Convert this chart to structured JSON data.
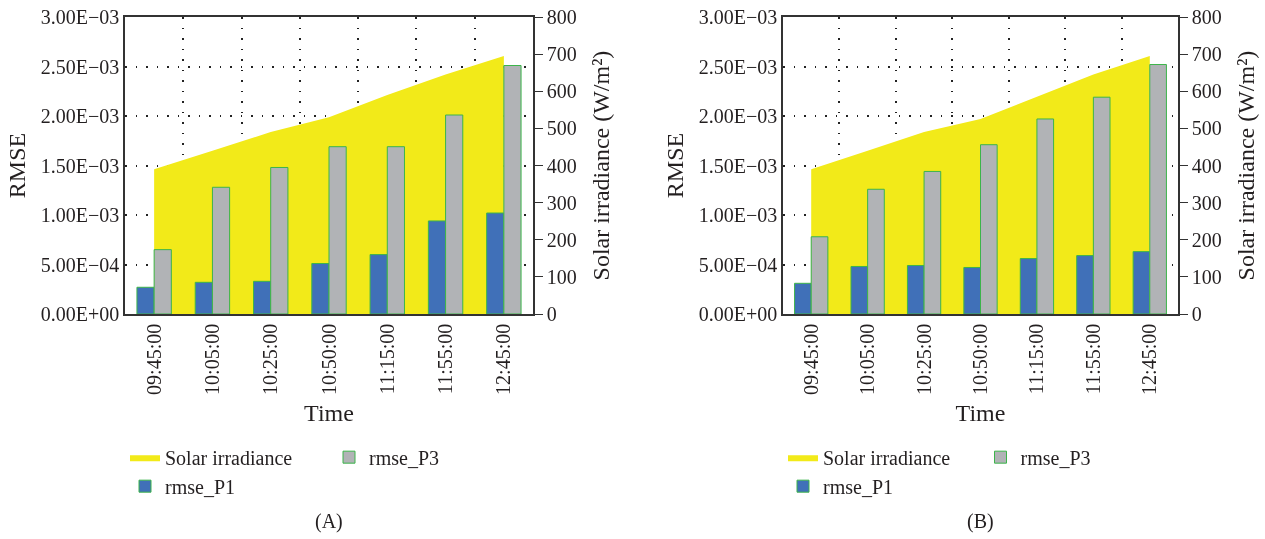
{
  "chart_data": [
    {
      "type": "bar",
      "xlabel": "Time",
      "ylabel": "RMSE",
      "y2label": "Solar irradiance (W/m²)",
      "annotations": [
        "(A)"
      ],
      "categories": [
        "09:45:00",
        "10:05:00",
        "10:25:00",
        "10:50:00",
        "11:15:00",
        "11:55:00",
        "12:45:00"
      ],
      "series": [
        {
          "name": "Solar irradiance",
          "type": "area",
          "axis": "y2",
          "color": "#f2ea19",
          "values": [
            390,
            440,
            490,
            530,
            590,
            645,
            695
          ]
        },
        {
          "name": "rmse_P1",
          "color": "#4070b8",
          "values": [
            0.00027,
            0.00032,
            0.00033,
            0.00051,
            0.0006,
            0.00094,
            0.00102
          ]
        },
        {
          "name": "rmse_P3",
          "color": "#b1b3b6",
          "values": [
            0.00065,
            0.00128,
            0.00148,
            0.00169,
            0.00169,
            0.00201,
            0.00251
          ]
        }
      ],
      "ylim": [
        0,
        0.003
      ],
      "yticks": [
        {
          "value": 0,
          "label": "0.00E+00"
        },
        {
          "value": 0.0005,
          "label": "5.00E−04"
        },
        {
          "value": 0.001,
          "label": "1.00E−03"
        },
        {
          "value": 0.0015,
          "label": "1.50E−03"
        },
        {
          "value": 0.002,
          "label": "2.00E−03"
        },
        {
          "value": 0.0025,
          "label": "2.50E−03"
        },
        {
          "value": 0.003,
          "label": "3.00E−03"
        }
      ],
      "y2lim": [
        0,
        800
      ],
      "y2ticks": [
        0,
        100,
        200,
        300,
        400,
        500,
        600,
        700,
        800
      ],
      "grid": true,
      "legend": "bottom left"
    },
    {
      "type": "bar",
      "xlabel": "Time",
      "ylabel": "RMSE",
      "y2label": "Solar irradiance (W/m²)",
      "annotations": [
        "(B)"
      ],
      "categories": [
        "09:45:00",
        "10:05:00",
        "10:25:00",
        "10:50:00",
        "11:15:00",
        "11:55:00",
        "12:45:00"
      ],
      "series": [
        {
          "name": "Solar irradiance",
          "type": "area",
          "axis": "y2",
          "color": "#f2ea19",
          "values": [
            390,
            440,
            490,
            525,
            585,
            645,
            695
          ]
        },
        {
          "name": "rmse_P1",
          "color": "#4070b8",
          "values": [
            0.00031,
            0.00048,
            0.00049,
            0.00047,
            0.00056,
            0.00059,
            0.00063
          ]
        },
        {
          "name": "rmse_P3",
          "color": "#b1b3b6",
          "values": [
            0.00078,
            0.00126,
            0.00144,
            0.00171,
            0.00197,
            0.00219,
            0.00252
          ]
        }
      ],
      "ylim": [
        0,
        0.003
      ],
      "yticks": [
        {
          "value": 0,
          "label": "0.00E+00"
        },
        {
          "value": 0.0005,
          "label": "5.00E−04"
        },
        {
          "value": 0.001,
          "label": "1.00E−03"
        },
        {
          "value": 0.0015,
          "label": "1.50E−03"
        },
        {
          "value": 0.002,
          "label": "2.00E−03"
        },
        {
          "value": 0.0025,
          "label": "2.50E−03"
        },
        {
          "value": 0.003,
          "label": "3.00E−03"
        }
      ],
      "y2lim": [
        0,
        800
      ],
      "y2ticks": [
        0,
        100,
        200,
        300,
        400,
        500,
        600,
        700,
        800
      ],
      "grid": true,
      "legend": "bottom left"
    }
  ]
}
